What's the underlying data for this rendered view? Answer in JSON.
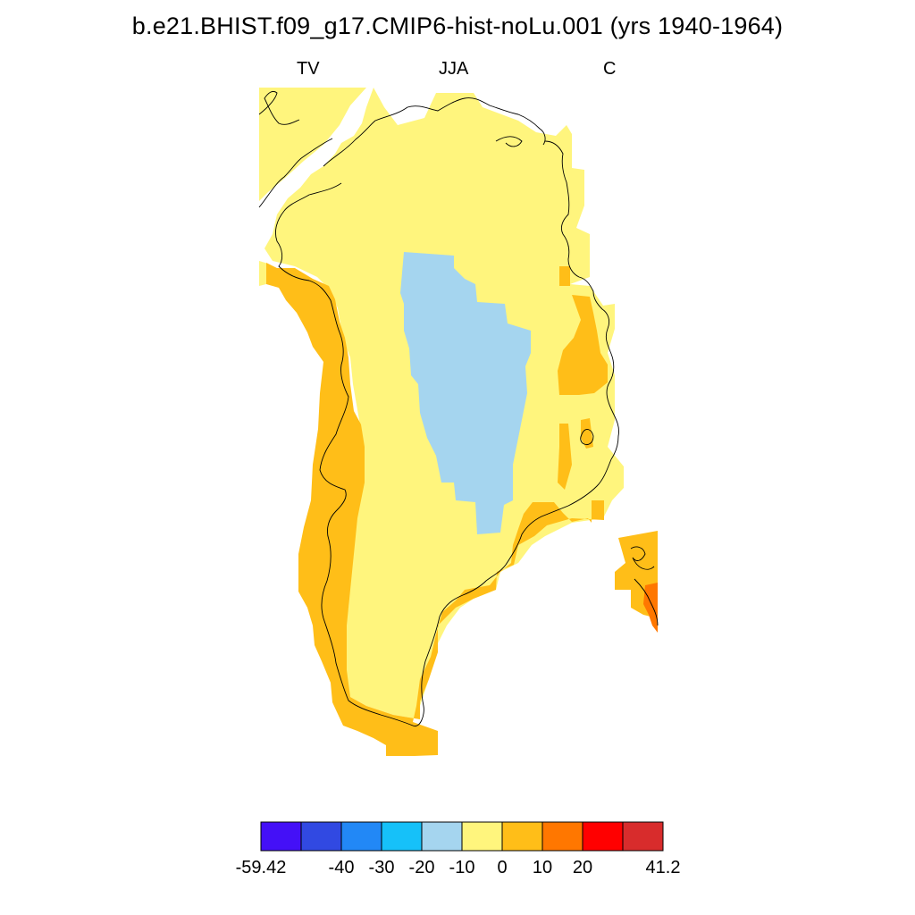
{
  "title": "b.e21.BHIST.f09_g17.CMIP6-hist-noLu.001 (yrs 1940-1964)",
  "subtitle": {
    "left": "TV",
    "center": "JJA",
    "right": "C"
  },
  "colors": {
    "band_neg20_neg10": "#a5d5ef",
    "band_neg10_0": "#fff57d",
    "band_0_10": "#ffbe18",
    "band_10_20": "#ff7700"
  },
  "colorbar": {
    "colors": [
      "#4410f7",
      "#3149e2",
      "#2288f6",
      "#16c1f9",
      "#a5d5ef",
      "#fff57d",
      "#ffbe18",
      "#ff7700",
      "#ff0000",
      "#d82c2c"
    ],
    "labels": [
      "-59.42",
      "-40",
      "-30",
      "-20",
      "-10",
      "0",
      "10",
      "20",
      "41.2"
    ]
  }
}
